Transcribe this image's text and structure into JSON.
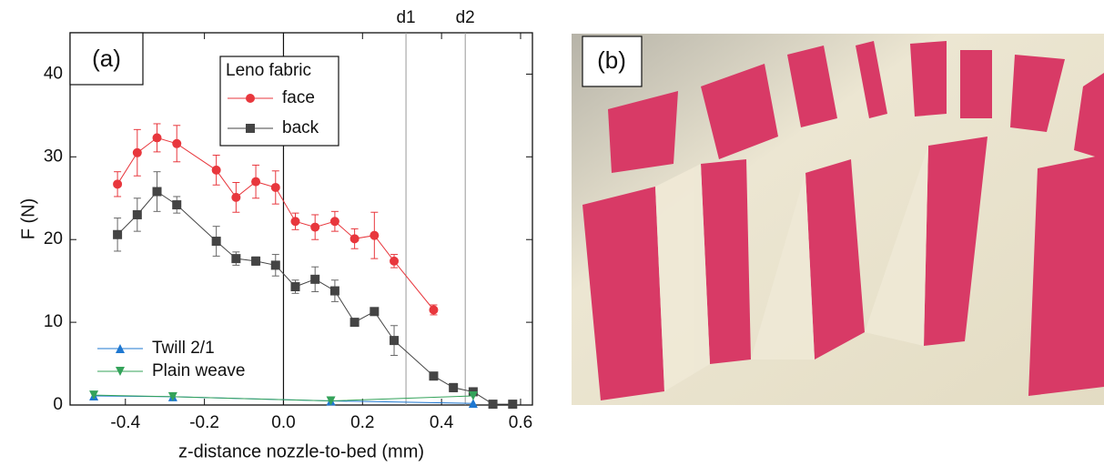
{
  "chart_data": {
    "type": "line",
    "xlabel": "z-distance nozzle-to-bed (mm)",
    "ylabel": "F (N)",
    "panel_label": "(a)",
    "legend_title": "Leno fabric",
    "xlim": [
      -0.54,
      0.63
    ],
    "ylim": [
      0,
      45
    ],
    "xticks": [
      -0.4,
      -0.2,
      {
        "value": 0,
        "label": "0.0"
      },
      0.2,
      0.4,
      0.6
    ],
    "yticks": [
      0,
      10,
      20,
      30,
      40
    ],
    "vlines": [
      {
        "x": 0.31,
        "label": "d1"
      },
      {
        "x": 0.46,
        "label": "d2"
      }
    ],
    "series": [
      {
        "name": "face",
        "color": "#e8373d",
        "marker": "circle",
        "x": [
          -0.42,
          -0.37,
          -0.32,
          -0.27,
          -0.17,
          -0.12,
          -0.07,
          -0.02,
          0.03,
          0.08,
          0.13,
          0.18,
          0.23,
          0.28,
          0.38
        ],
        "values": [
          26.7,
          30.5,
          32.3,
          31.6,
          28.4,
          25.1,
          27.0,
          26.3,
          22.2,
          21.5,
          22.2,
          20.1,
          20.5,
          17.4,
          11.5
        ],
        "errors": [
          1.5,
          2.8,
          1.7,
          2.2,
          1.8,
          1.8,
          2.0,
          2.0,
          1.0,
          1.5,
          1.2,
          1.2,
          2.8,
          0.8,
          0.6
        ]
      },
      {
        "name": "back",
        "color": "#444444",
        "marker": "square",
        "x": [
          -0.42,
          -0.37,
          -0.32,
          -0.27,
          -0.17,
          -0.12,
          -0.07,
          -0.02,
          0.03,
          0.08,
          0.13,
          0.18,
          0.23,
          0.28,
          0.38,
          0.43,
          0.48,
          0.53,
          0.58
        ],
        "values": [
          20.6,
          23.0,
          25.8,
          24.2,
          19.8,
          17.7,
          17.4,
          16.9,
          14.3,
          15.2,
          13.8,
          10.0,
          11.3,
          7.8,
          3.5,
          2.1,
          1.6,
          0.1,
          0.1
        ],
        "errors": [
          2.0,
          2.0,
          2.4,
          1.0,
          1.8,
          0.8,
          0.5,
          1.3,
          0.8,
          1.5,
          1.3,
          0.3,
          0.3,
          1.8,
          0.3,
          0.5,
          0.3,
          0.2,
          0.2
        ]
      },
      {
        "name": "Twill 2/1",
        "color": "#1f78d1",
        "marker": "triangle-up",
        "x": [
          -0.48,
          -0.28,
          0.12,
          0.48
        ],
        "values": [
          1.1,
          1.0,
          0.5,
          0.2
        ]
      },
      {
        "name": "Plain weave",
        "color": "#34a35a",
        "marker": "triangle-down",
        "x": [
          -0.48,
          -0.28,
          0.12,
          0.48
        ],
        "values": [
          1.2,
          1.0,
          0.5,
          1.1
        ]
      }
    ]
  },
  "photo": {
    "panel_label": "(b)"
  }
}
